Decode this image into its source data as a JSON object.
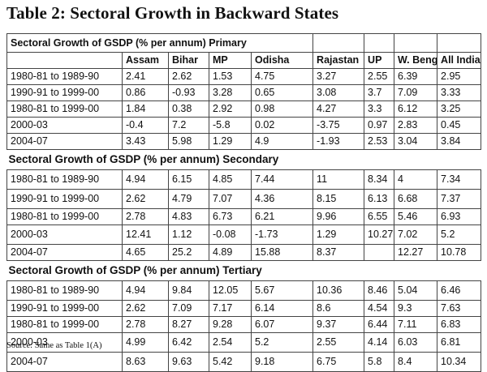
{
  "title": "Table 2: Sectoral Growth in Backward States",
  "sections": {
    "primary": "Sectoral Growth of GSDP (% per annum) Primary",
    "secondary": "Sectoral Growth of GSDP (% per annum) Secondary",
    "tertiary": "Sectoral Growth of GSDP (% per annum) Tertiary"
  },
  "columns": [
    "Assam",
    "Bihar",
    "MP",
    "Odisha",
    "Rajastan",
    "UP",
    "W. Bengal",
    "All India"
  ],
  "primary": [
    {
      "period": "1980-81 to 1989-90",
      "values": [
        "2.41",
        "2.62",
        "1.53",
        "4.75",
        "3.27",
        "2.55",
        "6.39",
        "2.95"
      ]
    },
    {
      "period": "1990-91 to 1999-00",
      "values": [
        "0.86",
        "-0.93",
        "3.28",
        "0.65",
        "3.08",
        "3.7",
        "7.09",
        "3.33"
      ]
    },
    {
      "period": "1980-81 to 1999-00",
      "values": [
        "1.84",
        "0.38",
        "2.92",
        "0.98",
        "4.27",
        "3.3",
        "6.12",
        "3.25"
      ]
    },
    {
      "period": "2000-03",
      "values": [
        "-0.4",
        "7.2",
        "-5.8",
        "0.02",
        "-3.75",
        "0.97",
        "2.83",
        "0.45"
      ]
    },
    {
      "period": "2004-07",
      "values": [
        "3.43",
        "5.98",
        "1.29",
        "4.9",
        "-1.93",
        "2.53",
        "3.04",
        "3.84"
      ]
    }
  ],
  "secondary": [
    {
      "period": "1980-81 to 1989-90",
      "values": [
        "4.94",
        "6.15",
        "4.85",
        "7.44",
        "11",
        "8.34",
        "4",
        "7.34"
      ]
    },
    {
      "period": "1990-91 to 1999-00",
      "values": [
        "2.62",
        "4.79",
        "7.07",
        "4.36",
        "8.15",
        "6.13",
        "6.68",
        "7.37"
      ]
    },
    {
      "period": "1980-81 to 1999-00",
      "values": [
        "2.78",
        "4.83",
        "6.73",
        "6.21",
        "9.96",
        "6.55",
        "5.46",
        "6.93"
      ]
    },
    {
      "period": "2000-03",
      "values": [
        "12.41",
        "1.12",
        "-0.08",
        "-1.73",
        "1.29",
        "10.27",
        "7.02",
        "5.2"
      ]
    },
    {
      "period": "2004-07",
      "values": [
        "4.65",
        "25.2",
        "4.89",
        "15.88",
        "8.37",
        "",
        "12.27",
        "10.78"
      ]
    }
  ],
  "tertiary": [
    {
      "period": "1980-81 to 1989-90",
      "values": [
        "4.94",
        "9.84",
        "12.05",
        "5.67",
        "10.36",
        "8.46",
        "5.04",
        "6.46"
      ]
    },
    {
      "period": "1990-91 to 1999-00",
      "values": [
        "2.62",
        "7.09",
        "7.17",
        "6.14",
        "8.6",
        "4.54",
        "9.3",
        "7.63"
      ]
    },
    {
      "period": "1980-81 to 1999-00",
      "values": [
        "2.78",
        "8.27",
        "9.28",
        "6.07",
        "9.37",
        "6.44",
        "7.11",
        "6.83"
      ]
    },
    {
      "period": "2000-03",
      "values": [
        "4.99",
        "6.42",
        "2.54",
        "5.2",
        "2.55",
        "4.14",
        "6.03",
        "6.81"
      ]
    },
    {
      "period": "2004-07",
      "values": [
        "8.63",
        "9.63",
        "5.42",
        "9.18",
        "6.75",
        "5.8",
        "8.4",
        "10.34"
      ]
    }
  ],
  "source": "Source: Same as Table 1(A)"
}
